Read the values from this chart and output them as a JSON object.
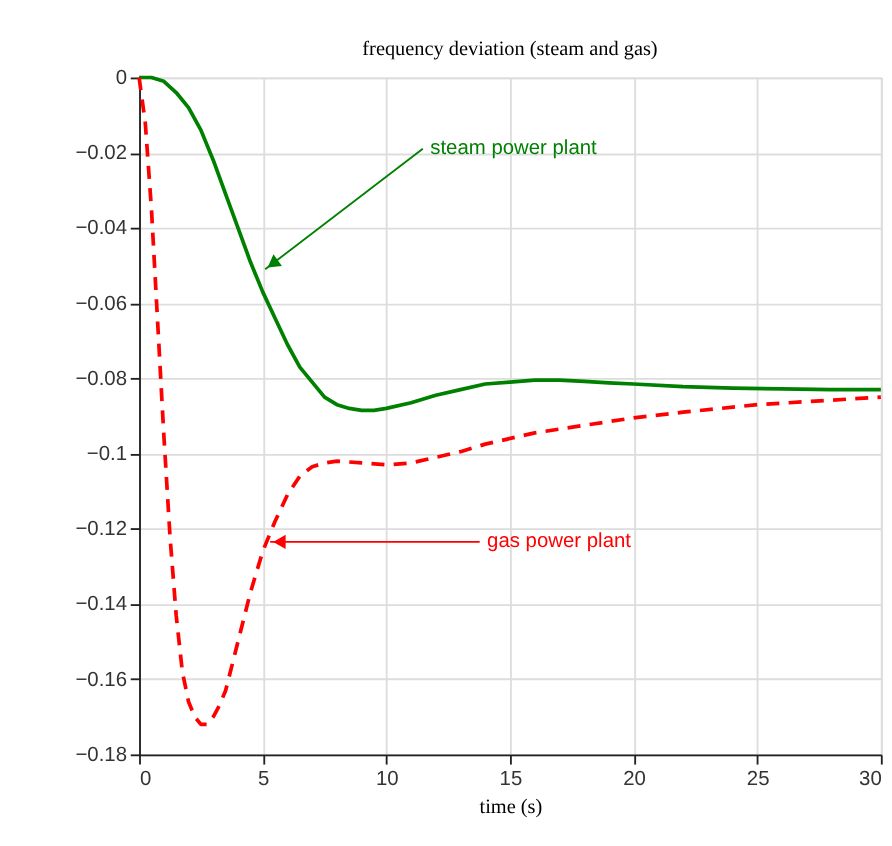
{
  "chart_data": {
    "type": "line",
    "title": "frequency deviation (steam and gas)",
    "xlabel": "time (s)",
    "xlim": [
      0,
      30
    ],
    "xticks": [
      0,
      5,
      10,
      15,
      20,
      25,
      30
    ],
    "ylim": [
      -0.18,
      0
    ],
    "yticks": [
      -0.18,
      -0.16,
      -0.14,
      -0.12,
      -0.1,
      -0.08,
      -0.06,
      -0.04,
      -0.02,
      0
    ],
    "grid": true,
    "marker": "none",
    "series": [
      {
        "color": "#008000",
        "line_style": "solid",
        "x": [
          0,
          0.5,
          1,
          1.5,
          2,
          2.5,
          3,
          3.5,
          4,
          4.5,
          5,
          5.5,
          6,
          6.5,
          7,
          7.5,
          8,
          8.5,
          9,
          9.5,
          10,
          11,
          12,
          13,
          14,
          15,
          16,
          17,
          18,
          19,
          20,
          22,
          24,
          26,
          28,
          30
        ],
        "values": [
          0,
          0,
          -0.001,
          -0.004,
          -0.008,
          -0.014,
          -0.022,
          -0.031,
          -0.04,
          -0.049,
          -0.057,
          -0.064,
          -0.071,
          -0.077,
          -0.081,
          -0.085,
          -0.087,
          -0.088,
          -0.0885,
          -0.0885,
          -0.088,
          -0.0865,
          -0.0845,
          -0.083,
          -0.0815,
          -0.081,
          -0.0805,
          -0.0805,
          -0.0808,
          -0.0812,
          -0.0815,
          -0.0822,
          -0.0826,
          -0.0828,
          -0.083,
          -0.083
        ]
      },
      {
        "color": "#ff0000",
        "line_style": "dashed",
        "x": [
          0,
          0.25,
          0.5,
          0.75,
          1,
          1.25,
          1.5,
          1.75,
          2,
          2.25,
          2.5,
          2.75,
          3,
          3.25,
          3.5,
          4,
          4.5,
          5,
          5.5,
          6,
          6.5,
          7,
          7.5,
          8,
          9,
          10,
          11,
          12,
          13,
          14,
          16,
          18,
          20,
          22,
          25,
          28,
          30
        ],
        "values": [
          0,
          -0.012,
          -0.035,
          -0.065,
          -0.095,
          -0.122,
          -0.143,
          -0.158,
          -0.166,
          -0.17,
          -0.172,
          -0.172,
          -0.17,
          -0.167,
          -0.163,
          -0.15,
          -0.137,
          -0.126,
          -0.118,
          -0.111,
          -0.106,
          -0.1035,
          -0.1025,
          -0.102,
          -0.1025,
          -0.103,
          -0.1025,
          -0.101,
          -0.0995,
          -0.0975,
          -0.0945,
          -0.0925,
          -0.0905,
          -0.089,
          -0.087,
          -0.0858,
          -0.085
        ]
      }
    ],
    "annotations": [
      {
        "text": "steam power plant",
        "x": 5.1,
        "y": -0.051
      },
      {
        "text": "gas power plant",
        "x": 5.3,
        "y": -0.1235
      }
    ]
  }
}
